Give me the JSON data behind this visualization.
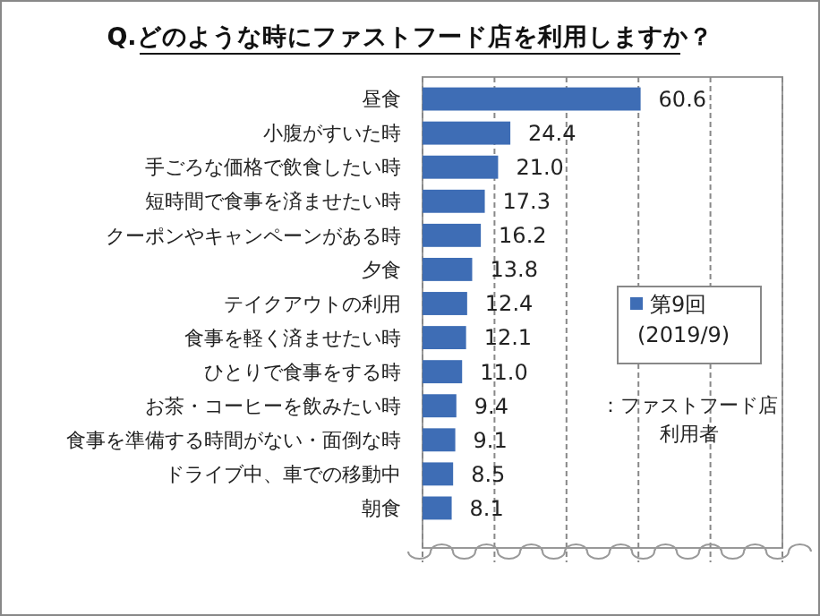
{
  "chart_data": {
    "type": "bar",
    "orientation": "horizontal",
    "title": "Q.どのような時にファストフード店を利用しますか？",
    "categories": [
      "昼食",
      "小腹がすいた時",
      "手ごろな価格で飲食したい時",
      "短時間で食事を済ませたい時",
      "クーポンやキャンペーンがある時",
      "夕食",
      "テイクアウトの利用",
      "食事を軽く済ませたい時",
      "ひとりで食事をする時",
      "お茶・コーヒーを飲みたい時",
      "食事を準備する時間がない・面倒な時",
      "ドライブ中、車での移動中",
      "朝食"
    ],
    "series": [
      {
        "name": "第9回\n(2019/9)",
        "color": "#3e6db5",
        "values": [
          60.6,
          24.4,
          21.0,
          17.3,
          16.2,
          13.8,
          12.4,
          12.1,
          11.0,
          9.4,
          9.1,
          8.5,
          8.1
        ],
        "value_labels": [
          "60.6",
          "24.4",
          "21.0",
          "17.3",
          "16.2",
          "13.8",
          "12.4",
          "12.1",
          "11.0",
          "9.4",
          "9.1",
          "8.5",
          "8.1"
        ]
      }
    ],
    "xlim": [
      0,
      100
    ],
    "xticks": [
      {
        "value": 0,
        "label": null
      },
      {
        "value": 20,
        "label": null
      },
      {
        "value": 40,
        "label": null
      },
      {
        "value": 60,
        "label": null
      },
      {
        "value": 80,
        "label": null
      },
      {
        "value": 100,
        "label": null
      }
    ],
    "tick_labels": "y",
    "grid": "x",
    "legend": "right",
    "annotations": [
      "：ファストフード店利用者"
    ]
  }
}
